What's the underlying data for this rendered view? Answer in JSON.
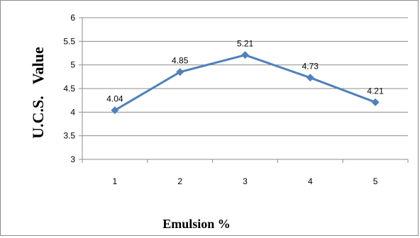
{
  "chart_data": {
    "type": "line",
    "title": "",
    "xlabel": "Emulsion %",
    "ylabel": "U.C.S.   Value",
    "categories": [
      "1",
      "2",
      "3",
      "4",
      "5"
    ],
    "series": [
      {
        "values": [
          4.04,
          4.85,
          5.21,
          4.73,
          4.21
        ],
        "color": "#4f81bd",
        "data_labels": [
          "4.04",
          "4.85",
          "5.21",
          "4.73",
          "4.21"
        ]
      }
    ],
    "ylim": [
      3,
      6
    ],
    "yticks": [
      3,
      3.5,
      4,
      4.5,
      5,
      5.5,
      6
    ],
    "ytick_labels": [
      "3",
      "3.5",
      "4",
      "4.5",
      "5",
      "5.5",
      "6"
    ],
    "grid": true,
    "marker": "diamond",
    "legend": "none",
    "colors": {
      "series": "#4f81bd",
      "grid": "#8c8c8c",
      "axis": "#8c8c8c"
    }
  }
}
